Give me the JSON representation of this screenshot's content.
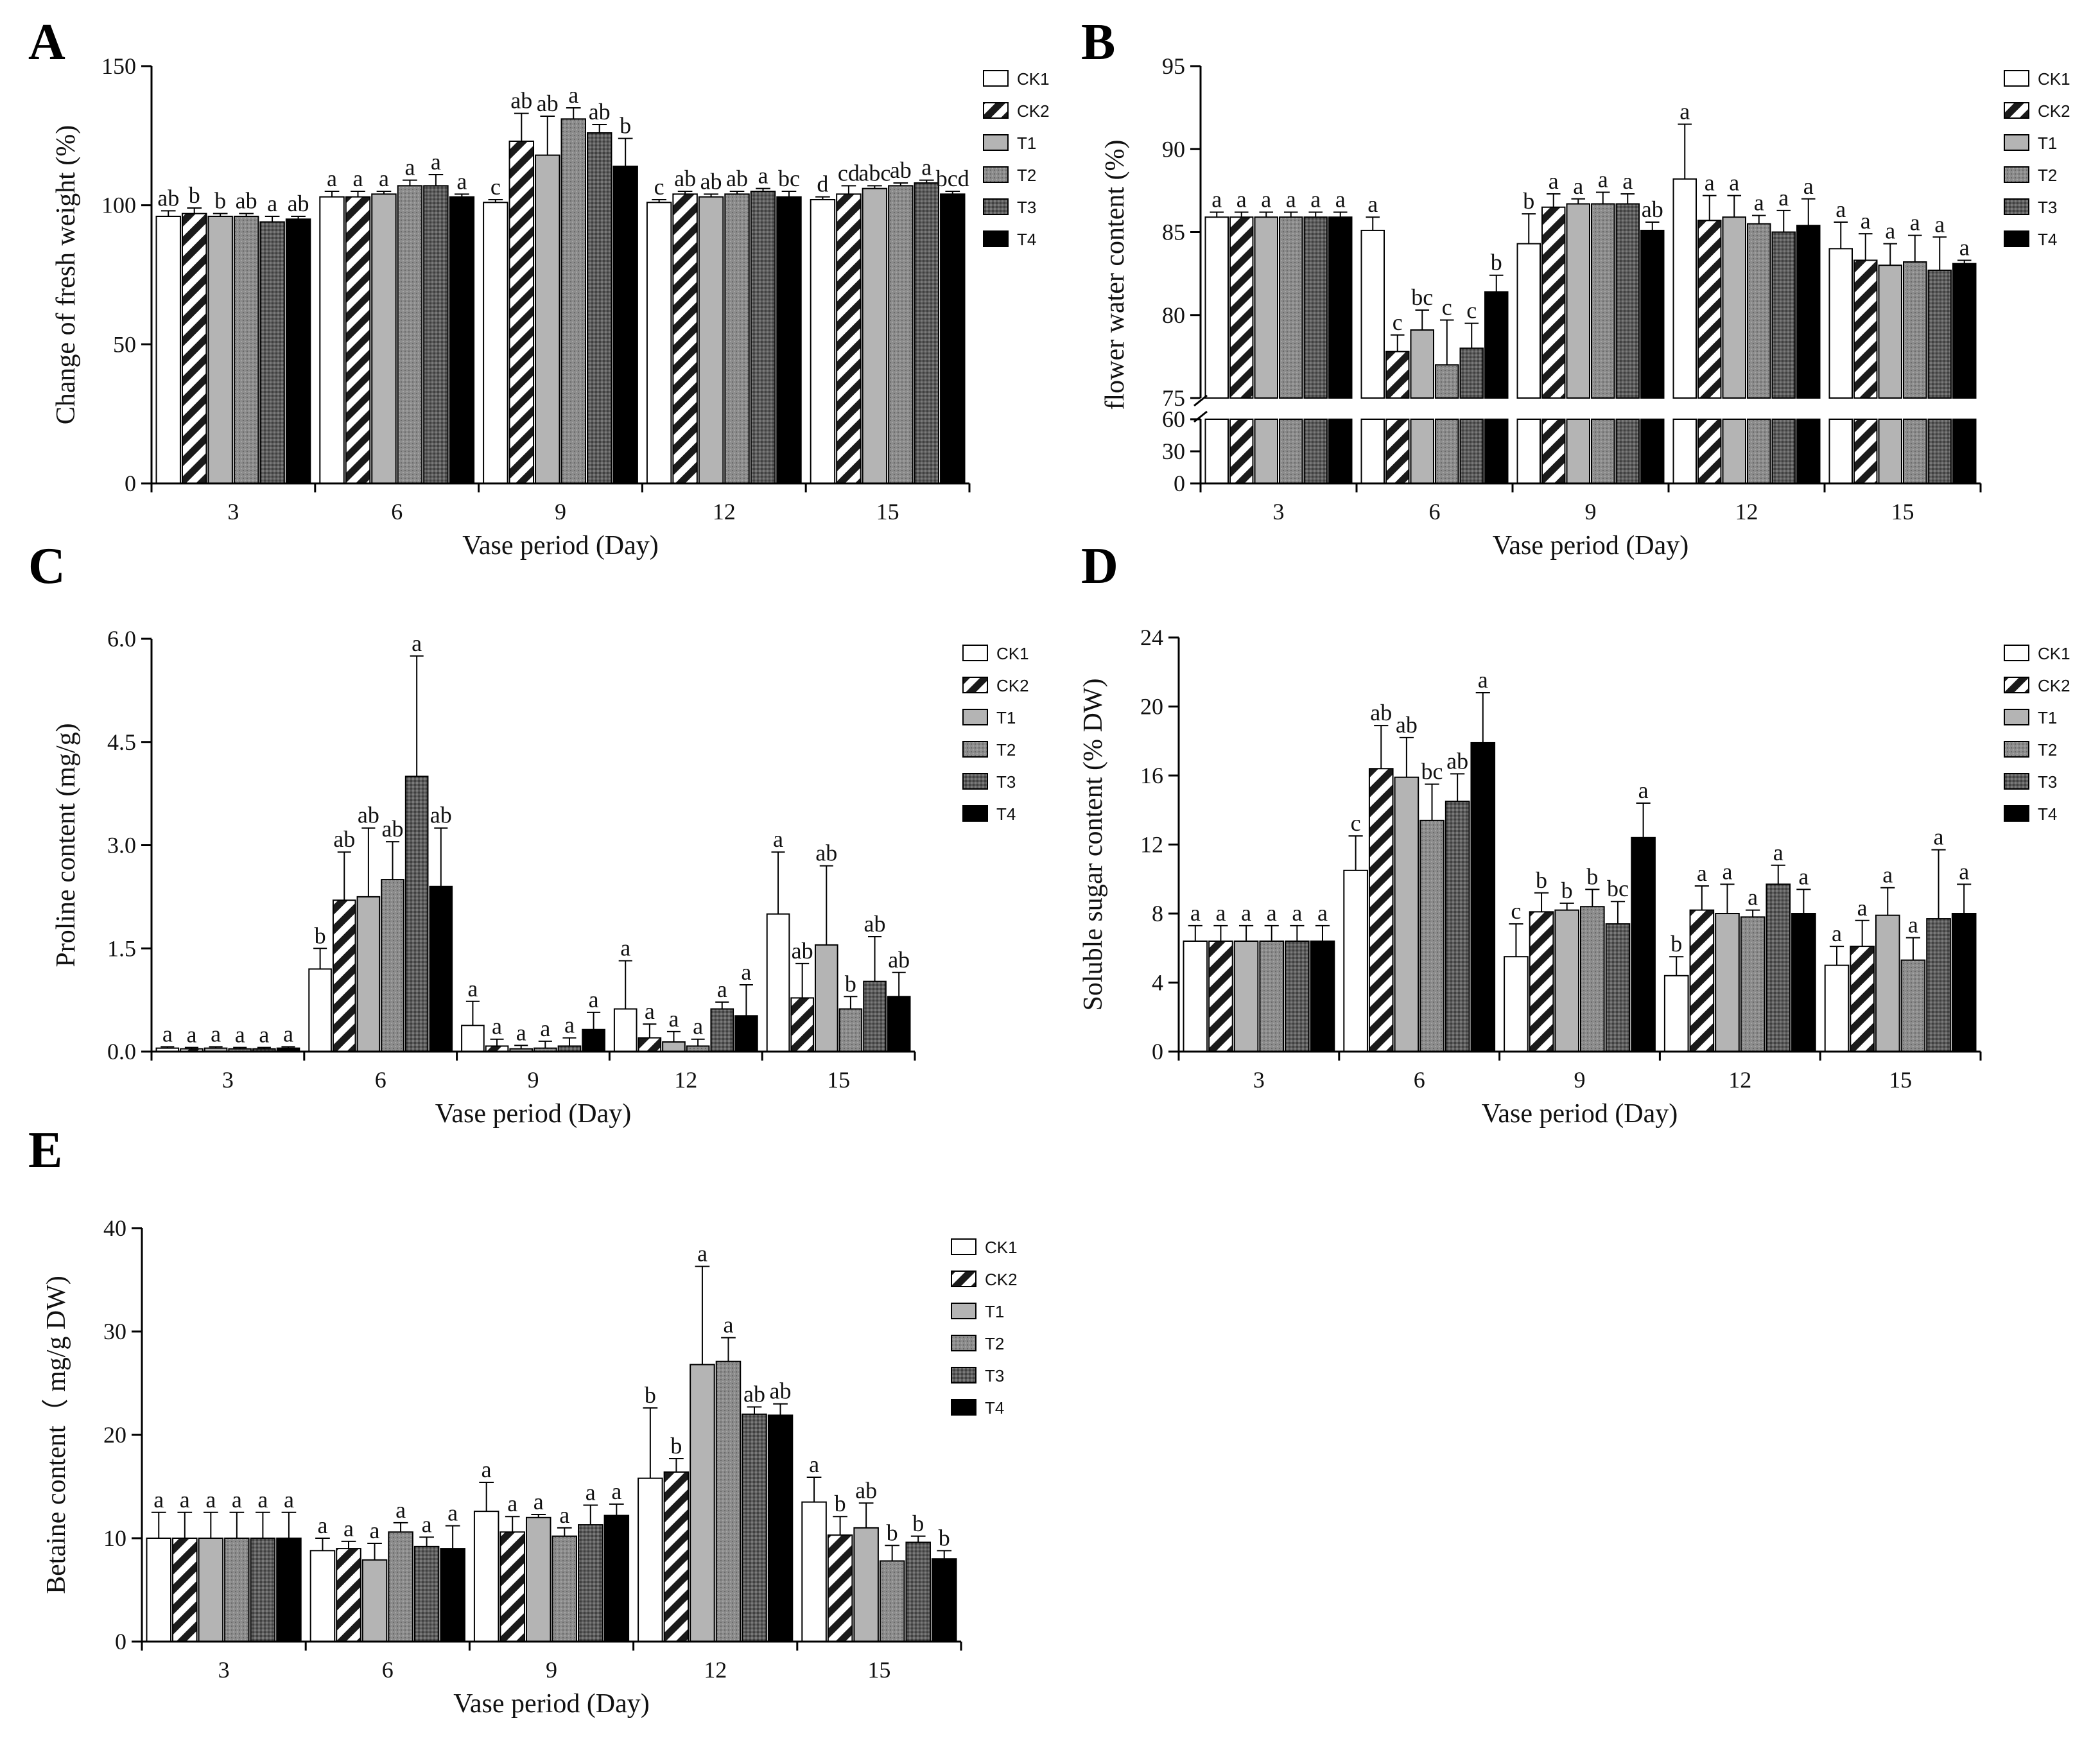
{
  "chart_data": [
    {
      "id": "A",
      "type": "bar",
      "panel_label": "A",
      "title": "",
      "xlabel": "Vase period (Day)",
      "ylabel": "Change of fresh weight (%)",
      "categories": [
        "3",
        "6",
        "9",
        "12",
        "15"
      ],
      "ylim": [
        0,
        150
      ],
      "yticks": [
        0,
        50,
        100,
        150
      ],
      "legend_position": "top-right",
      "series": [
        {
          "name": "CK1",
          "values": [
            96,
            103,
            101,
            101,
            102
          ],
          "errors": [
            2,
            2,
            1,
            1,
            1
          ],
          "sig": [
            "ab",
            "a",
            "c",
            "c",
            "d"
          ]
        },
        {
          "name": "CK2",
          "values": [
            97,
            103,
            123,
            104,
            104
          ],
          "errors": [
            2,
            2,
            10,
            1,
            3
          ],
          "sig": [
            "b",
            "a",
            "ab",
            "ab",
            "cd"
          ]
        },
        {
          "name": "T1",
          "values": [
            96,
            104,
            118,
            103,
            106
          ],
          "errors": [
            1,
            1,
            14,
            1,
            1
          ],
          "sig": [
            "b",
            "a",
            "ab",
            "ab",
            "abc"
          ]
        },
        {
          "name": "T2",
          "values": [
            96,
            107,
            131,
            104,
            107
          ],
          "errors": [
            1,
            2,
            4,
            1,
            1
          ],
          "sig": [
            "ab",
            "a",
            "a",
            "ab",
            "ab"
          ]
        },
        {
          "name": "T3",
          "values": [
            94,
            107,
            126,
            105,
            108
          ],
          "errors": [
            2,
            4,
            3,
            1,
            1
          ],
          "sig": [
            "a",
            "a",
            "ab",
            "a",
            "a"
          ]
        },
        {
          "name": "T4",
          "values": [
            95,
            103,
            114,
            103,
            104
          ],
          "errors": [
            1,
            1,
            10,
            2,
            1
          ],
          "sig": [
            "ab",
            "a",
            "b",
            "bc",
            "bcd"
          ]
        }
      ]
    },
    {
      "id": "B",
      "type": "bar",
      "panel_label": "B",
      "title": "",
      "xlabel": "Vase period (Day)",
      "ylabel": "flower water content (%)",
      "categories": [
        "3",
        "6",
        "9",
        "12",
        "15"
      ],
      "ylim": [
        0,
        95
      ],
      "axis_break": [
        60,
        75
      ],
      "yticks_lower": [
        0,
        30,
        60
      ],
      "yticks_upper": [
        75,
        80,
        85,
        90,
        95
      ],
      "legend_position": "top-right",
      "series": [
        {
          "name": "CK1",
          "values": [
            85.9,
            85.1,
            84.3,
            88.2,
            84.0
          ],
          "errors": [
            0.3,
            0.8,
            1.8,
            3.3,
            1.6
          ],
          "sig": [
            "a",
            "a",
            "b",
            "a",
            "a"
          ]
        },
        {
          "name": "CK2",
          "values": [
            85.9,
            77.8,
            86.5,
            85.7,
            83.3
          ],
          "errors": [
            0.3,
            1.0,
            0.8,
            1.5,
            1.6
          ],
          "sig": [
            "a",
            "c",
            "a",
            "a",
            "a"
          ]
        },
        {
          "name": "T1",
          "values": [
            85.9,
            79.1,
            86.7,
            85.9,
            83.0
          ],
          "errors": [
            0.3,
            1.2,
            0.3,
            1.3,
            1.3
          ],
          "sig": [
            "a",
            "bc",
            "a",
            "a",
            "a"
          ]
        },
        {
          "name": "T2",
          "values": [
            85.9,
            77.0,
            86.7,
            85.5,
            83.2
          ],
          "errors": [
            0.3,
            2.7,
            0.7,
            0.5,
            1.6
          ],
          "sig": [
            "a",
            "c",
            "a",
            "a",
            "a"
          ]
        },
        {
          "name": "T3",
          "values": [
            85.9,
            78.0,
            86.7,
            85.0,
            82.7
          ],
          "errors": [
            0.3,
            1.5,
            0.6,
            1.3,
            2.0
          ],
          "sig": [
            "a",
            "c",
            "a",
            "a",
            "a"
          ]
        },
        {
          "name": "T4",
          "values": [
            85.9,
            81.4,
            85.1,
            85.4,
            83.1
          ],
          "errors": [
            0.3,
            1.0,
            0.5,
            1.6,
            0.2
          ],
          "sig": [
            "a",
            "b",
            "ab",
            "a",
            "a"
          ]
        }
      ]
    },
    {
      "id": "C",
      "type": "bar",
      "panel_label": "C",
      "title": "",
      "xlabel": "Vase period (Day)",
      "ylabel": "Proline content (mg/g)",
      "categories": [
        "3",
        "6",
        "9",
        "12",
        "15"
      ],
      "ylim": [
        0,
        6
      ],
      "yticks": [
        0,
        1.5,
        3,
        4.5,
        6
      ],
      "ytick_labels": [
        "0.0",
        "1.5",
        "3.0",
        "4.5",
        "6.0"
      ],
      "legend_position": "top-right",
      "series": [
        {
          "name": "CK1",
          "values": [
            0.05,
            1.2,
            0.38,
            0.62,
            2.0
          ],
          "errors": [
            0.02,
            0.3,
            0.35,
            0.7,
            0.9
          ],
          "sig": [
            "a",
            "b",
            "a",
            "a",
            "a"
          ]
        },
        {
          "name": "CK2",
          "values": [
            0.04,
            2.2,
            0.08,
            0.2,
            0.78
          ],
          "errors": [
            0.02,
            0.7,
            0.1,
            0.2,
            0.5
          ],
          "sig": [
            "a",
            "ab",
            "a",
            "a",
            "ab"
          ]
        },
        {
          "name": "T1",
          "values": [
            0.05,
            2.25,
            0.04,
            0.14,
            1.55
          ],
          "errors": [
            0.02,
            1.0,
            0.05,
            0.15,
            1.15
          ],
          "sig": [
            "a",
            "ab",
            "a",
            "a",
            "ab"
          ]
        },
        {
          "name": "T2",
          "values": [
            0.04,
            2.5,
            0.05,
            0.08,
            0.62
          ],
          "errors": [
            0.02,
            0.55,
            0.1,
            0.1,
            0.18
          ],
          "sig": [
            "a",
            "ab",
            "a",
            "a",
            "b"
          ]
        },
        {
          "name": "T3",
          "values": [
            0.04,
            4.0,
            0.08,
            0.62,
            1.02
          ],
          "errors": [
            0.02,
            1.75,
            0.12,
            0.1,
            0.65
          ],
          "sig": [
            "a",
            "a",
            "a",
            "a",
            "ab"
          ]
        },
        {
          "name": "T4",
          "values": [
            0.05,
            2.4,
            0.32,
            0.52,
            0.8
          ],
          "errors": [
            0.02,
            0.85,
            0.25,
            0.45,
            0.35
          ],
          "sig": [
            "a",
            "ab",
            "a",
            "a",
            "ab"
          ]
        }
      ]
    },
    {
      "id": "D",
      "type": "bar",
      "panel_label": "D",
      "title": "",
      "xlabel": "Vase period (Day)",
      "ylabel": "Soluble sugar content (% DW)",
      "categories": [
        "3",
        "6",
        "9",
        "12",
        "15"
      ],
      "ylim": [
        0,
        24
      ],
      "yticks": [
        0,
        4,
        8,
        12,
        16,
        20,
        24
      ],
      "legend_position": "top-right",
      "series": [
        {
          "name": "CK1",
          "values": [
            6.4,
            10.5,
            5.5,
            4.4,
            5.0
          ],
          "errors": [
            0.9,
            2.0,
            1.9,
            1.1,
            1.1
          ],
          "sig": [
            "a",
            "c",
            "c",
            "b",
            "a"
          ]
        },
        {
          "name": "CK2",
          "values": [
            6.4,
            16.4,
            8.1,
            8.2,
            6.1
          ],
          "errors": [
            0.9,
            2.5,
            1.1,
            1.4,
            1.5
          ],
          "sig": [
            "a",
            "ab",
            "b",
            "a",
            "a"
          ]
        },
        {
          "name": "T1",
          "values": [
            6.4,
            15.9,
            8.2,
            8.0,
            7.9
          ],
          "errors": [
            0.9,
            2.3,
            0.4,
            1.7,
            1.6
          ],
          "sig": [
            "a",
            "ab",
            "b",
            "a",
            "a"
          ]
        },
        {
          "name": "T2",
          "values": [
            6.4,
            13.4,
            8.4,
            7.8,
            5.3
          ],
          "errors": [
            0.9,
            2.1,
            1.0,
            0.4,
            1.3
          ],
          "sig": [
            "a",
            "bc",
            "b",
            "a",
            "a"
          ]
        },
        {
          "name": "T3",
          "values": [
            6.4,
            14.5,
            7.4,
            9.7,
            7.7
          ],
          "errors": [
            0.9,
            1.6,
            1.3,
            1.1,
            4.0
          ],
          "sig": [
            "a",
            "ab",
            "bc",
            "a",
            "a"
          ]
        },
        {
          "name": "T4",
          "values": [
            6.4,
            17.9,
            12.4,
            8.0,
            8.0
          ],
          "errors": [
            0.9,
            2.9,
            2.0,
            1.4,
            1.7
          ],
          "sig": [
            "a",
            "a",
            "a",
            "a",
            "a"
          ]
        }
      ]
    },
    {
      "id": "E",
      "type": "bar",
      "panel_label": "E",
      "title": "",
      "xlabel": "Vase period (Day)",
      "ylabel": "Betaine content（ mg/g DW)",
      "categories": [
        "3",
        "6",
        "9",
        "12",
        "15"
      ],
      "ylim": [
        0,
        40
      ],
      "yticks": [
        0,
        10,
        20,
        30,
        40
      ],
      "legend_position": "top-right",
      "series": [
        {
          "name": "CK1",
          "values": [
            10,
            8.8,
            12.6,
            15.8,
            13.5
          ],
          "errors": [
            2.5,
            1.2,
            2.8,
            6.8,
            2.4
          ],
          "sig": [
            "a",
            "a",
            "a",
            "b",
            "a"
          ]
        },
        {
          "name": "CK2",
          "values": [
            10,
            9.0,
            10.6,
            16.4,
            10.3
          ],
          "errors": [
            2.5,
            0.7,
            1.5,
            1.3,
            1.8
          ],
          "sig": [
            "a",
            "a",
            "a",
            "b",
            "b"
          ]
        },
        {
          "name": "T1",
          "values": [
            10,
            7.9,
            12.0,
            26.8,
            11.0
          ],
          "errors": [
            2.5,
            1.6,
            0.3,
            9.5,
            2.4
          ],
          "sig": [
            "a",
            "a",
            "a",
            "a",
            "ab"
          ]
        },
        {
          "name": "T2",
          "values": [
            10,
            10.6,
            10.2,
            27.1,
            7.8
          ],
          "errors": [
            2.5,
            0.9,
            0.8,
            2.3,
            1.5
          ],
          "sig": [
            "a",
            "a",
            "a",
            "a",
            "b"
          ]
        },
        {
          "name": "T3",
          "values": [
            10,
            9.2,
            11.3,
            22.0,
            9.6
          ],
          "errors": [
            2.5,
            0.9,
            1.9,
            0.7,
            0.6
          ],
          "sig": [
            "a",
            "a",
            "a",
            "ab",
            "b"
          ]
        },
        {
          "name": "T4",
          "values": [
            10,
            9.0,
            12.2,
            21.9,
            8.0
          ],
          "errors": [
            2.5,
            2.2,
            1.1,
            1.1,
            0.8
          ],
          "sig": [
            "a",
            "a",
            "a",
            "ab",
            "b"
          ]
        }
      ]
    }
  ]
}
